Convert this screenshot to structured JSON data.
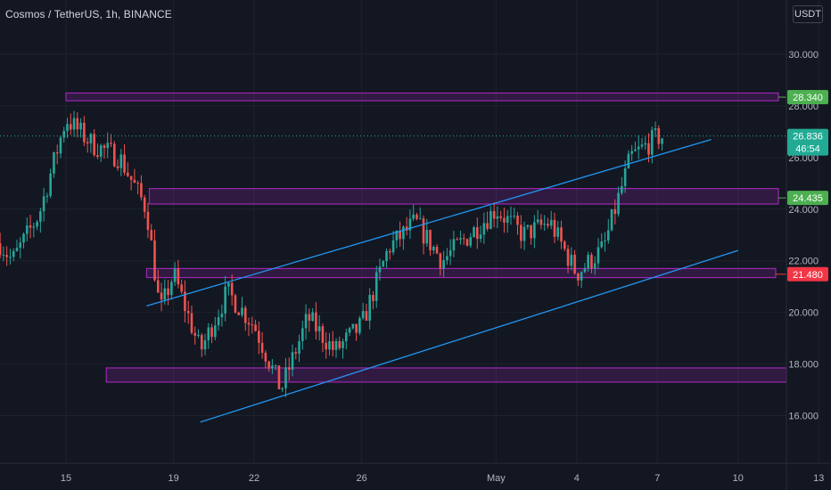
{
  "header": {
    "title": "Cosmos / TetherUS, 1h, BINANCE",
    "currency": "USDT"
  },
  "colors": {
    "background": "#131722",
    "up": "#26a69a",
    "down": "#ef5350",
    "zone": "#9c27b0",
    "trendline": "#2196f3",
    "grid": "#1e222d",
    "axis_text": "#b2b5be",
    "green_label": "#4caf50",
    "red_label": "#f23645",
    "teal_label": "#22ab94"
  },
  "chart_data": {
    "type": "candlestick",
    "ylim": [
      14.5,
      31.0
    ],
    "y_ticks": [
      16,
      18,
      20,
      22,
      24,
      26,
      28,
      30
    ],
    "y_tick_labels": [
      "16.000",
      "18.000",
      "20.000",
      "22.000",
      "24.000",
      "26.000",
      "28.000",
      "30.000"
    ],
    "x_tick_labels": [
      "15",
      "19",
      "22",
      "26",
      "May",
      "4",
      "7",
      "10",
      "13"
    ],
    "price_labels": [
      {
        "value": "28.340",
        "price": 28.34,
        "kind": "green"
      },
      {
        "value": "26.836",
        "price": 26.836,
        "kind": "teal",
        "countdown": "46:54"
      },
      {
        "value": "24.435",
        "price": 24.435,
        "kind": "green"
      },
      {
        "value": "21.480",
        "price": 21.48,
        "kind": "red"
      }
    ],
    "zones": [
      {
        "name": "resistance-zone-28",
        "low": 28.2,
        "high": 28.5
      },
      {
        "name": "zone-24",
        "low": 24.2,
        "high": 24.8
      },
      {
        "name": "zone-21",
        "low": 21.35,
        "high": 21.7
      },
      {
        "name": "support-zone-17",
        "low": 17.3,
        "high": 17.85
      }
    ],
    "trendlines": [
      {
        "name": "upper-channel-line",
        "from": {
          "date": "Apr 18",
          "price": 20.25
        },
        "to": {
          "date": "May 9",
          "price": 26.7
        }
      },
      {
        "name": "lower-channel-line",
        "from": {
          "date": "Apr 20",
          "price": 15.75
        },
        "to": {
          "date": "May 10",
          "price": 22.4
        }
      }
    ],
    "keypoints": [
      {
        "date": "Apr 12",
        "price": 23.5
      },
      {
        "date": "Apr 13",
        "price": 22.0
      },
      {
        "date": "Apr 14",
        "price": 23.8
      },
      {
        "date": "Apr 15",
        "price": 27.5
      },
      {
        "date": "Apr 16",
        "price": 26.5
      },
      {
        "date": "Apr 17",
        "price": 26.0
      },
      {
        "date": "Apr 18",
        "price": 24.0
      },
      {
        "date": "Apr 18.5",
        "price": 20.0
      },
      {
        "date": "Apr 19",
        "price": 21.5
      },
      {
        "date": "Apr 20",
        "price": 18.5
      },
      {
        "date": "Apr 21",
        "price": 20.8
      },
      {
        "date": "Apr 22",
        "price": 19.5
      },
      {
        "date": "Apr 23",
        "price": 17.0
      },
      {
        "date": "Apr 24",
        "price": 19.8
      },
      {
        "date": "Apr 25",
        "price": 18.5
      },
      {
        "date": "Apr 26",
        "price": 19.5
      },
      {
        "date": "Apr 27",
        "price": 22.5
      },
      {
        "date": "Apr 28",
        "price": 23.5
      },
      {
        "date": "Apr 29",
        "price": 22.0
      },
      {
        "date": "Apr 30",
        "price": 23.0
      },
      {
        "date": "May 1",
        "price": 24.0
      },
      {
        "date": "May 2",
        "price": 23.0
      },
      {
        "date": "May 3",
        "price": 23.5
      },
      {
        "date": "May 4",
        "price": 21.5
      },
      {
        "date": "May 5",
        "price": 22.5
      },
      {
        "date": "May 6",
        "price": 26.0
      },
      {
        "date": "May 7",
        "price": 26.8
      }
    ]
  }
}
